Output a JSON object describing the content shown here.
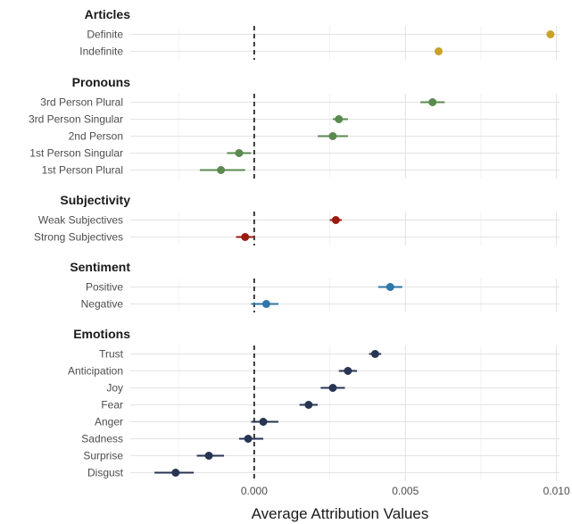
{
  "chart_data": {
    "type": "dot-errorbar",
    "xlabel": "Average Attribution Values",
    "xlim": [
      -0.0041,
      0.0101
    ],
    "xticks": [
      0.0,
      0.005,
      0.01
    ],
    "xtick_labels": [
      "0.000",
      "0.005",
      "0.010"
    ],
    "reference_line": 0.0,
    "grid": true,
    "panels": [
      {
        "title": "Articles",
        "color": "#C9A227",
        "items": [
          {
            "label": "Definite",
            "value": 0.0098,
            "lo": 0.00975,
            "hi": 0.00985
          },
          {
            "label": "Indefinite",
            "value": 0.0061,
            "lo": 0.00605,
            "hi": 0.00615
          }
        ]
      },
      {
        "title": "Pronouns",
        "color": "#5A8A4F",
        "items": [
          {
            "label": "3rd Person Plural",
            "value": 0.0059,
            "lo": 0.0055,
            "hi": 0.0063
          },
          {
            "label": "3rd Person Singular",
            "value": 0.0028,
            "lo": 0.0026,
            "hi": 0.0031
          },
          {
            "label": "2nd Person",
            "value": 0.0026,
            "lo": 0.0021,
            "hi": 0.0031
          },
          {
            "label": "1st Person Singular",
            "value": -0.0005,
            "lo": -0.0009,
            "hi": -0.0001
          },
          {
            "label": "1st Person Plural",
            "value": -0.0011,
            "lo": -0.0018,
            "hi": -0.0003
          }
        ]
      },
      {
        "title": "Subjectivity",
        "color": "#9B1B10",
        "items": [
          {
            "label": "Weak Subjectives",
            "value": 0.0027,
            "lo": 0.0025,
            "hi": 0.0029
          },
          {
            "label": "Strong Subjectives",
            "value": -0.0003,
            "lo": -0.0006,
            "hi": 0.0
          }
        ]
      },
      {
        "title": "Sentiment",
        "color": "#2E77A8",
        "items": [
          {
            "label": "Positive",
            "value": 0.0045,
            "lo": 0.0041,
            "hi": 0.0049
          },
          {
            "label": "Negative",
            "value": 0.0004,
            "lo": -0.0001,
            "hi": 0.0008
          }
        ]
      },
      {
        "title": "Emotions",
        "color": "#273452",
        "items": [
          {
            "label": "Trust",
            "value": 0.004,
            "lo": 0.0038,
            "hi": 0.0042
          },
          {
            "label": "Anticipation",
            "value": 0.0031,
            "lo": 0.0028,
            "hi": 0.0034
          },
          {
            "label": "Joy",
            "value": 0.0026,
            "lo": 0.0022,
            "hi": 0.003
          },
          {
            "label": "Fear",
            "value": 0.0018,
            "lo": 0.0015,
            "hi": 0.0021
          },
          {
            "label": "Anger",
            "value": 0.0003,
            "lo": -0.0001,
            "hi": 0.0008
          },
          {
            "label": "Sadness",
            "value": -0.0002,
            "lo": -0.0005,
            "hi": 0.0003
          },
          {
            "label": "Surprise",
            "value": -0.0015,
            "lo": -0.0019,
            "hi": -0.001
          },
          {
            "label": "Disgust",
            "value": -0.0026,
            "lo": -0.0033,
            "hi": -0.002
          }
        ]
      }
    ]
  }
}
